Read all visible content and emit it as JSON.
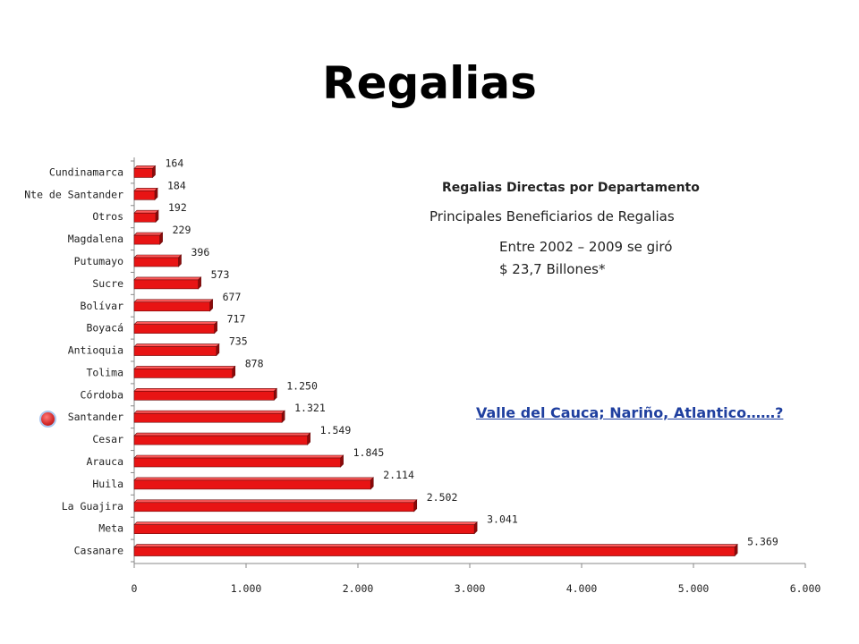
{
  "title": "Regalias",
  "subtitle": "Regalias Directas por Departamento",
  "subtitle2": "Principales Beneficiarios de Regalias",
  "note_line1": "Entre 2002 – 2009 se giró",
  "note_line2": "$ 23,7 Billones*",
  "link_text": "Valle del Cauca; Nariño, Atlantico……?",
  "colors": {
    "bar": "#e81414",
    "bar_dark": "#8c0a0a",
    "link": "#1f3f9f",
    "marker": "#d22828"
  },
  "chart_data": {
    "type": "bar",
    "orientation": "horizontal",
    "categories": [
      "Cundinamarca",
      "Nte de Santander",
      "Otros",
      "Magdalena",
      "Putumayo",
      "Sucre",
      "Bolívar",
      "Boyacá",
      "Antioquia",
      "Tolima",
      "Córdoba",
      "Santander",
      "Cesar",
      "Arauca",
      "Huila",
      "La Guajira",
      "Meta",
      "Casanare"
    ],
    "values": [
      164,
      184,
      192,
      229,
      396,
      573,
      677,
      717,
      735,
      878,
      1250,
      1321,
      1549,
      1845,
      2114,
      2502,
      3041,
      5369
    ],
    "value_labels": [
      "164",
      "184",
      "192",
      "229",
      "396",
      "573",
      "677",
      "717",
      "735",
      "878",
      "1.250",
      "1.321",
      "1.549",
      "1.845",
      "2.114",
      "2.502",
      "3.041",
      "5.369"
    ],
    "xlim": [
      0,
      6000
    ],
    "xticks": [
      0,
      1000,
      2000,
      3000,
      4000,
      5000,
      6000
    ],
    "xtick_labels": [
      "0",
      "1.000",
      "2.000",
      "3.000",
      "4.000",
      "5.000",
      "6.000"
    ],
    "grid": false,
    "legend": "none"
  }
}
